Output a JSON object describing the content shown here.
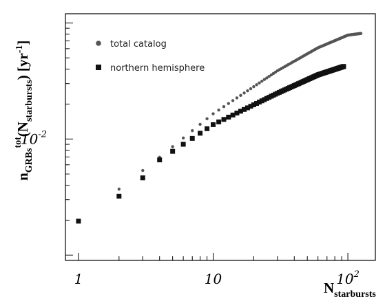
{
  "chart_data": {
    "type": "scatter",
    "x_scale": "log",
    "y_scale": "log",
    "xlim": [
      0.8,
      160
    ],
    "ylim": [
      0.0009,
      0.12
    ],
    "grid": false,
    "legend_position": "top-left",
    "x_ticks": [
      {
        "value": 1,
        "label": "1",
        "exp": ""
      },
      {
        "value": 10,
        "label": "10",
        "exp": ""
      },
      {
        "value": 100,
        "label": "10",
        "exp": "2"
      }
    ],
    "y_ticks": [
      {
        "value": 0.01,
        "label": "10",
        "exp": "-2"
      }
    ],
    "xlabel": {
      "base": "N",
      "sub": "starbursts"
    },
    "ylabel": {
      "n": "n",
      "sub1": "GRBs",
      "sup": "tot",
      "open": "(N",
      "sub2": "starbursts",
      "close": ") [yr",
      "sup2": "-1",
      "end": "]"
    },
    "series": [
      {
        "name": "total catalog",
        "marker": "circle",
        "color": "#555555",
        "x_start": 1,
        "x_end": 125,
        "points": [
          [
            1,
            0.00196
          ],
          [
            4,
            0.00697
          ],
          [
            10,
            0.0165
          ],
          [
            30,
            0.0387
          ],
          [
            60,
            0.0611
          ],
          [
            100,
            0.0785
          ],
          [
            125,
            0.0812
          ]
        ]
      },
      {
        "name": "northern hemisphere",
        "marker": "square",
        "color": "#111111",
        "x_start": 1,
        "x_end": 93,
        "points": [
          [
            1,
            0.00196
          ],
          [
            2,
            0.00322
          ],
          [
            3,
            0.00463
          ],
          [
            4,
            0.00661
          ],
          [
            10,
            0.0133
          ],
          [
            30,
            0.0248
          ],
          [
            60,
            0.0357
          ],
          [
            93,
            0.0422
          ]
        ]
      }
    ]
  }
}
